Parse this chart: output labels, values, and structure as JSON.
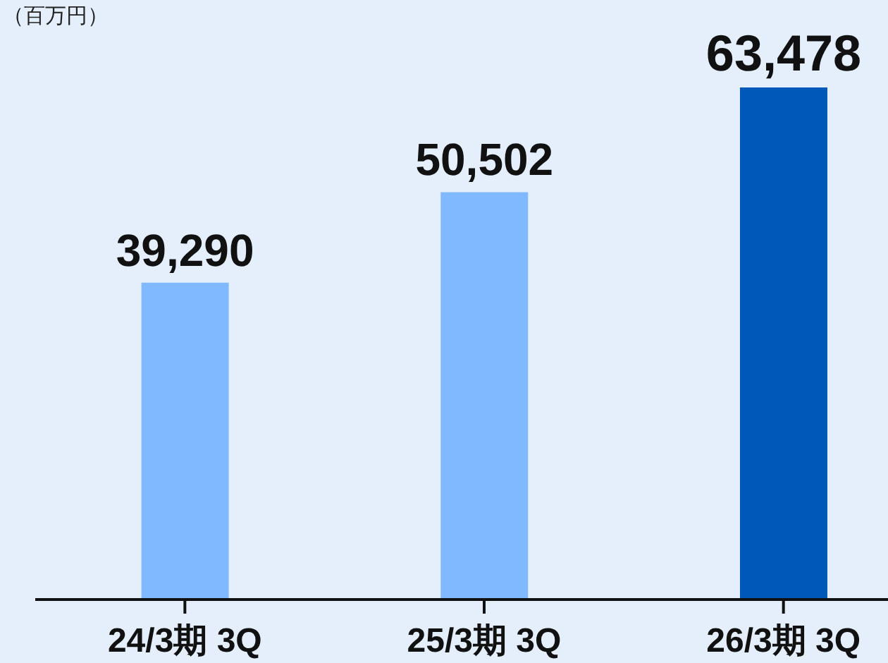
{
  "chart_data": {
    "type": "bar",
    "ylabel": "（百万円）",
    "categories": [
      "24/3期 3Q",
      "25/3期 3Q",
      "26/3期 3Q"
    ],
    "values": [
      39290,
      50502,
      63478
    ],
    "colors": [
      "#80b9ff",
      "#80b9ff",
      "#0058b8"
    ],
    "value_labels": [
      "39,290",
      "50,502",
      "63,478"
    ],
    "grid": false,
    "legend": false
  }
}
